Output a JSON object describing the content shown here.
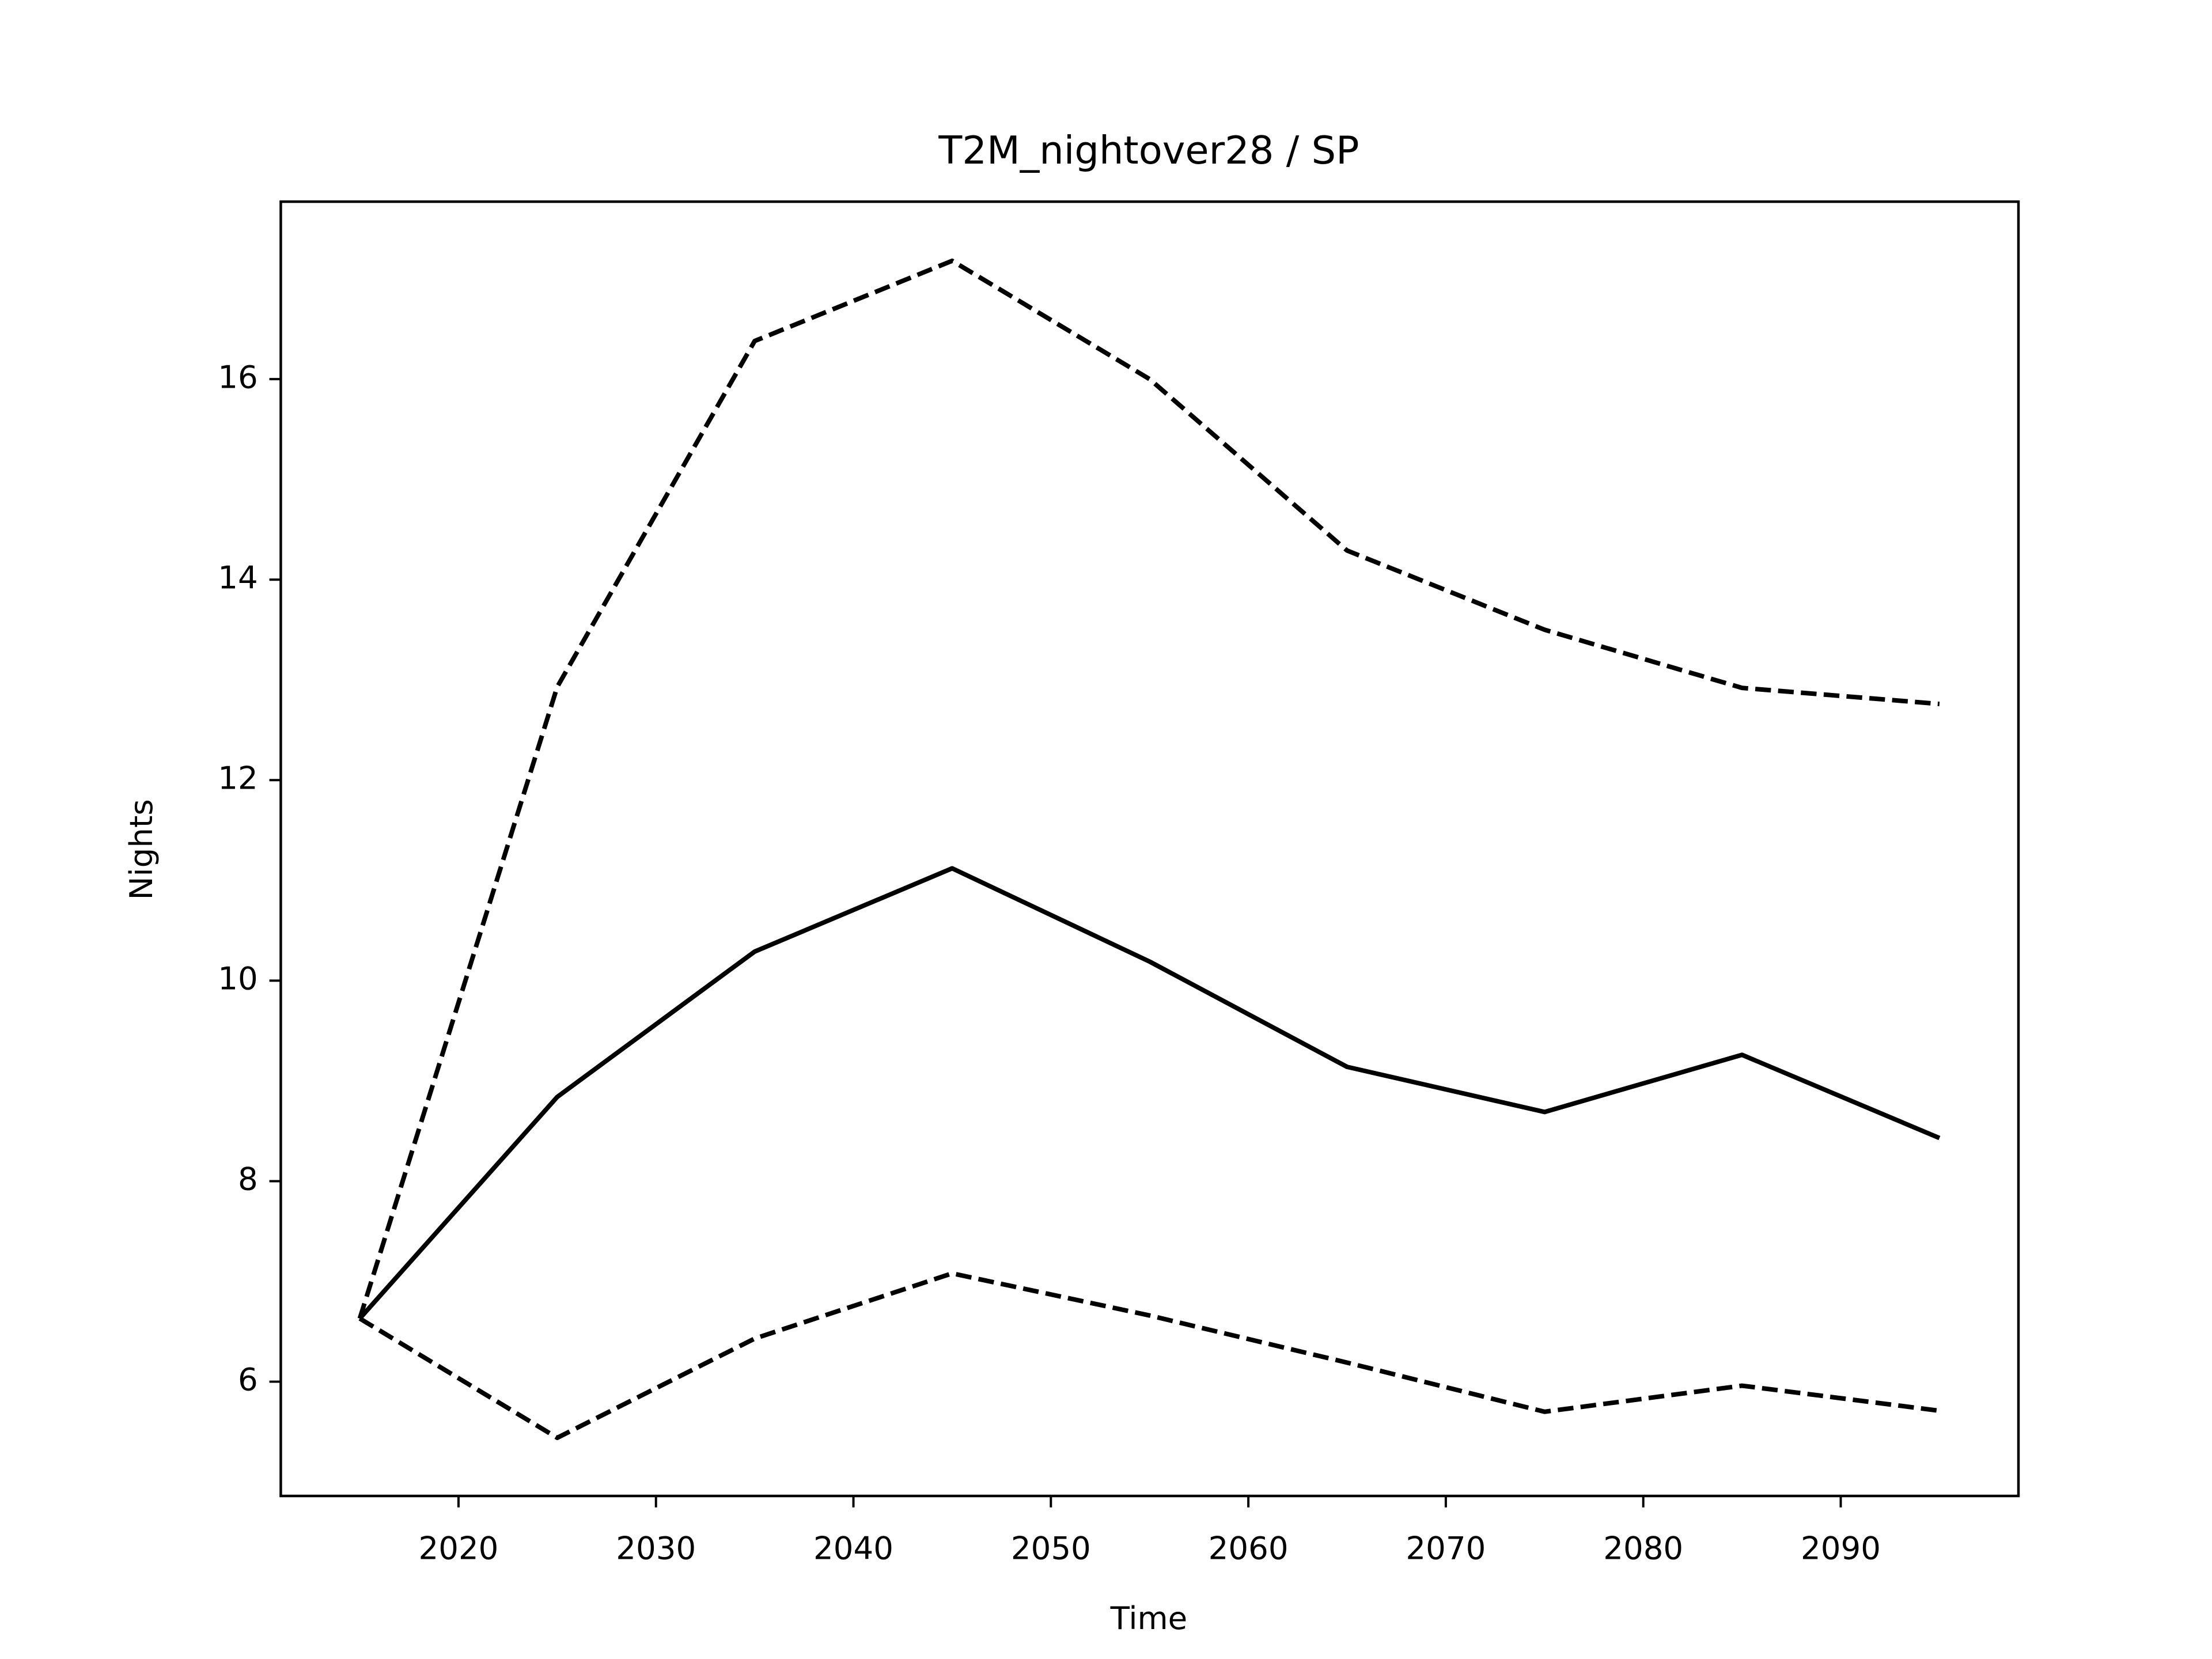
{
  "chart_data": {
    "type": "line",
    "title": "T2M_nightover28 / SP",
    "x_label": "Time",
    "y_label": "Nights",
    "x": [
      2015,
      2025,
      2035,
      2045,
      2055,
      2065,
      2075,
      2085,
      2095
    ],
    "series": [
      {
        "color": "#000000",
        "style": "solid",
        "values": [
          6.63,
          8.84,
          10.29,
          11.12,
          10.19,
          9.14,
          8.69,
          9.26,
          8.43
        ]
      },
      {
        "color": "#000000",
        "style": "dashed",
        "values": [
          6.63,
          12.93,
          16.38,
          17.18,
          16.0,
          14.29,
          13.5,
          12.92,
          12.76
        ]
      },
      {
        "color": "#000000",
        "style": "dashed",
        "values": [
          6.63,
          5.44,
          6.43,
          7.08,
          6.66,
          6.19,
          5.7,
          5.96,
          5.71
        ]
      }
    ],
    "xlim": [
      2011,
      2099
    ],
    "ylim": [
      4.86,
      17.77
    ],
    "xticks": [
      2020,
      2030,
      2040,
      2050,
      2060,
      2070,
      2080,
      2090
    ],
    "yticks": [
      6,
      8,
      10,
      12,
      14,
      16
    ],
    "grid": false
  }
}
